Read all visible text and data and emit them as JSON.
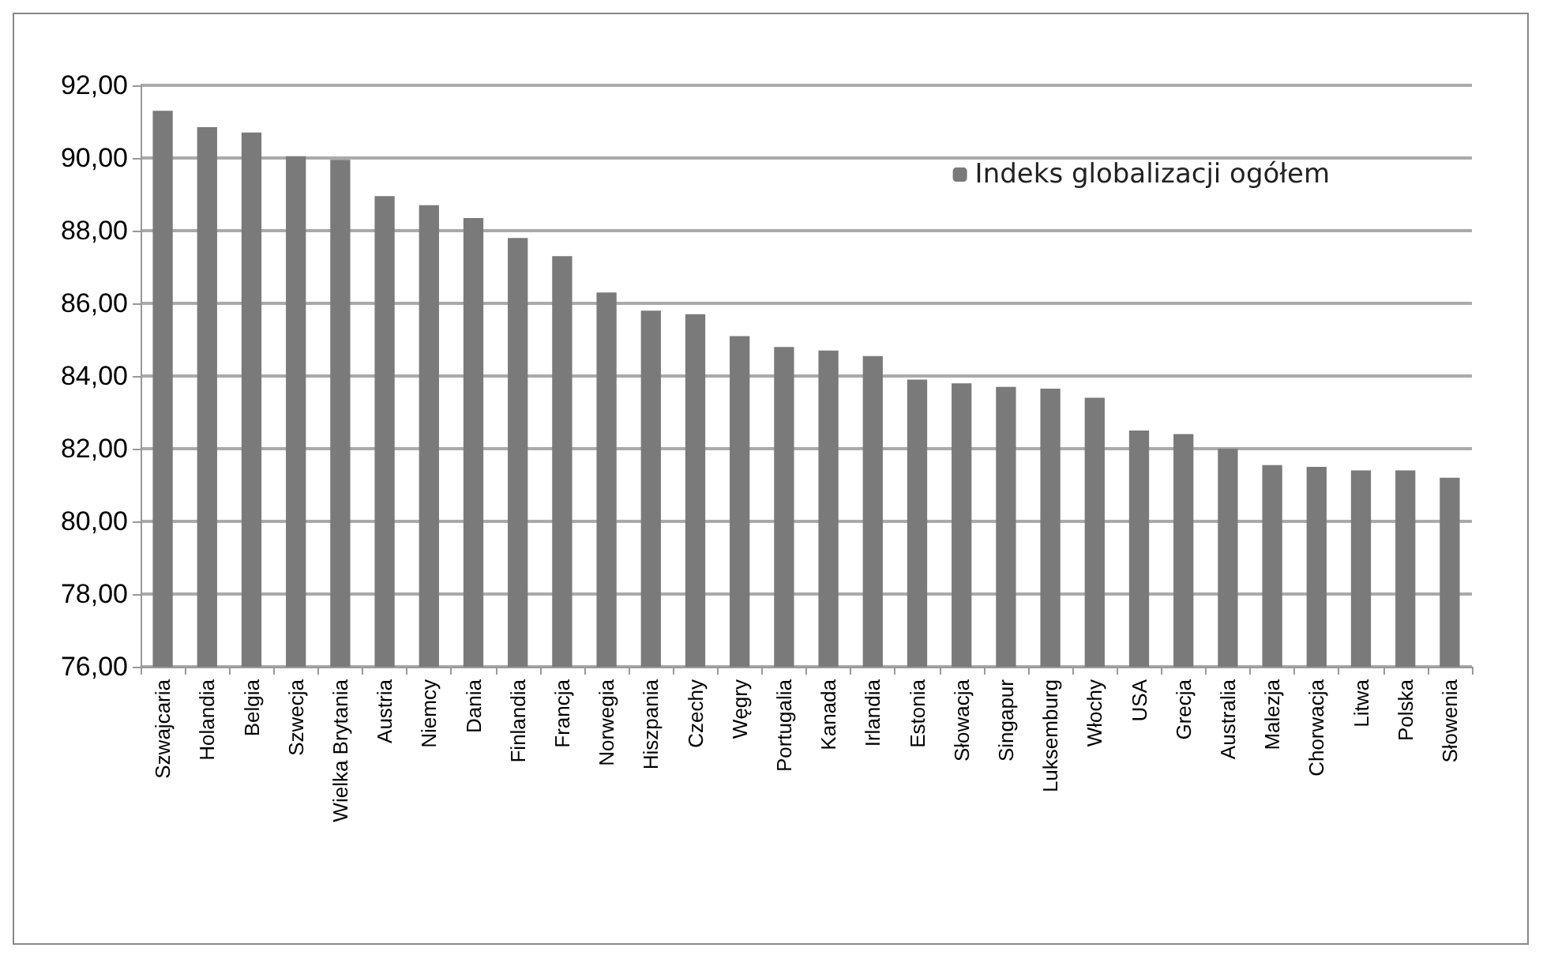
{
  "chart_data": {
    "type": "bar",
    "categories": [
      "Szwajcaria",
      "Holandia",
      "Belgia",
      "Szwecja",
      "Wielka Brytania",
      "Austria",
      "Niemcy",
      "Dania",
      "Finlandia",
      "Francja",
      "Norwegia",
      "Hiszpania",
      "Czechy",
      "Węgry",
      "Portugalia",
      "Kanada",
      "Irlandia",
      "Estonia",
      "Słowacja",
      "Singapur",
      "Luksemburg",
      "Włochy",
      "USA",
      "Grecja",
      "Australia",
      "Malezja",
      "Chorwacja",
      "Litwa",
      "Polska",
      "Słowenia"
    ],
    "series": [
      {
        "name": "Indeks globalizacji ogółem",
        "color": "#7a7a7a",
        "values": [
          91.3,
          90.85,
          90.7,
          90.05,
          89.95,
          88.95,
          88.7,
          88.35,
          87.8,
          87.3,
          86.3,
          85.8,
          85.7,
          85.1,
          84.8,
          84.7,
          84.55,
          83.9,
          83.8,
          83.7,
          83.65,
          83.4,
          82.5,
          82.4,
          82.0,
          81.55,
          81.5,
          81.4,
          81.4,
          81.2
        ]
      }
    ],
    "ylim": [
      76,
      92
    ],
    "yticks": [
      {
        "value": 76,
        "label": "76,00"
      },
      {
        "value": 78,
        "label": "78,00"
      },
      {
        "value": 80,
        "label": "80,00"
      },
      {
        "value": 82,
        "label": "82,00"
      },
      {
        "value": 84,
        "label": "84,00"
      },
      {
        "value": 86,
        "label": "86,00"
      },
      {
        "value": 88,
        "label": "88,00"
      },
      {
        "value": 90,
        "label": "90,00"
      },
      {
        "value": 92,
        "label": "92,00"
      }
    ],
    "grid": "y",
    "legend": "top right"
  }
}
